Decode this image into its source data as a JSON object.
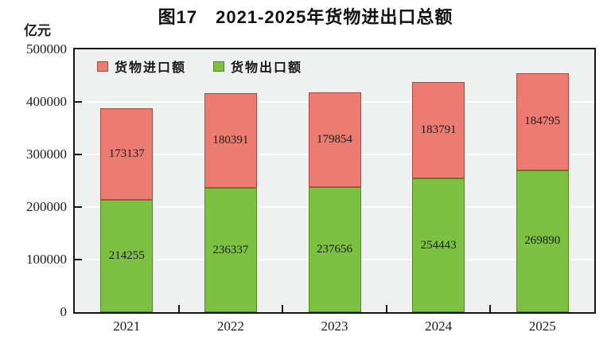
{
  "title": "图17　2021-2025年货物进出口总额",
  "y_unit_label": "亿元",
  "legend": {
    "items": [
      {
        "label": "货物进口额",
        "color": "#ec7b72",
        "border_color": "#a8493f"
      },
      {
        "label": "货物出口额",
        "color": "#7cc142",
        "border_color": "#55871f"
      }
    ]
  },
  "chart_data": {
    "type": "bar",
    "stacked": true,
    "title": "图17　2021-2025年货物进出口总额",
    "ylabel": "亿元",
    "xlabel": "",
    "categories": [
      "2021",
      "2022",
      "2023",
      "2024",
      "2025"
    ],
    "series": [
      {
        "name": "货物出口额",
        "color": "#7cc142",
        "border_color": "#55871f",
        "values": [
          214255,
          236337,
          237656,
          254443,
          269890
        ]
      },
      {
        "name": "货物进口额",
        "color": "#ec7b72",
        "border_color": "#a8493f",
        "values": [
          173137,
          180391,
          179854,
          183791,
          184795
        ]
      }
    ],
    "ylim": [
      0,
      500000
    ],
    "ytick_interval": 100000,
    "ytick_labels": [
      "0",
      "100000",
      "200000",
      "300000",
      "400000",
      "500000"
    ],
    "grid": true,
    "legend_position": "top-left-inside",
    "colors": {
      "plot_bg": "#eff0f0",
      "gridline": "#ffffff",
      "frame": "#161616",
      "label_text": "#1c1c1c"
    }
  }
}
